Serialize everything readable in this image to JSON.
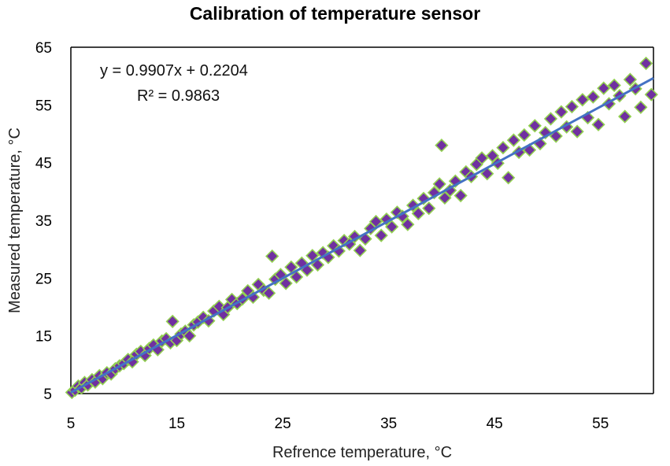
{
  "chart_data": {
    "type": "scatter",
    "title": "Calibration of temperature sensor",
    "xlabel": "Refrence temperature, °C",
    "ylabel": "Measured temperature, °C",
    "xlim": [
      5,
      60
    ],
    "ylim": [
      5,
      65
    ],
    "x_ticks": [
      "5",
      "15",
      "25",
      "35",
      "45",
      "55"
    ],
    "y_ticks": [
      "5",
      "15",
      "25",
      "35",
      "45",
      "55",
      "65"
    ],
    "grid": false,
    "marker_color": "#7030a0",
    "marker_edge_color": "#92d050",
    "trendline_color": "#4472c4",
    "trendline": {
      "equation": "y = 0.9907x + 0.2204",
      "r_squared": "R² = 0.9863",
      "slope": 0.9907,
      "intercept": 0.2204
    },
    "x": [
      5.1,
      5.4,
      5.7,
      6.0,
      6.3,
      6.6,
      7.0,
      7.3,
      7.7,
      8.0,
      8.4,
      8.8,
      9.2,
      9.6,
      10.0,
      10.4,
      10.8,
      11.2,
      11.6,
      12.0,
      12.4,
      12.8,
      13.2,
      13.6,
      14.0,
      14.4,
      14.6,
      15.0,
      15.4,
      15.8,
      16.2,
      16.6,
      17.0,
      17.5,
      18.0,
      18.5,
      19.0,
      19.4,
      19.8,
      20.2,
      20.7,
      21.2,
      21.7,
      22.2,
      22.7,
      23.2,
      23.7,
      24.0,
      24.3,
      24.8,
      25.3,
      25.8,
      26.3,
      26.8,
      27.3,
      27.8,
      28.3,
      28.8,
      29.3,
      29.8,
      30.3,
      30.8,
      31.3,
      31.8,
      32.3,
      32.8,
      33.3,
      33.8,
      34.3,
      34.8,
      35.3,
      35.8,
      36.3,
      36.8,
      37.3,
      37.8,
      38.3,
      38.8,
      39.3,
      39.8,
      40.0,
      40.3,
      40.8,
      41.3,
      41.8,
      42.3,
      42.8,
      43.3,
      43.8,
      44.3,
      44.8,
      45.3,
      45.8,
      46.3,
      46.8,
      47.3,
      47.8,
      48.3,
      48.8,
      49.3,
      49.8,
      50.3,
      50.8,
      51.3,
      51.8,
      52.3,
      52.8,
      53.3,
      53.8,
      54.3,
      54.8,
      55.3,
      55.8,
      56.3,
      56.8,
      57.3,
      57.8,
      58.3,
      58.8,
      59.3,
      59.8
    ],
    "y": [
      5.2,
      5.6,
      6.3,
      6.0,
      6.9,
      6.5,
      7.4,
      7.0,
      8.1,
      7.6,
      8.6,
      8.4,
      9.3,
      9.8,
      10.2,
      10.9,
      10.5,
      11.8,
      12.3,
      11.6,
      12.8,
      13.4,
      12.6,
      14.1,
      14.5,
      13.8,
      17.5,
      14.2,
      15.3,
      15.8,
      15.0,
      16.9,
      17.4,
      18.2,
      17.6,
      19.3,
      20.1,
      18.7,
      19.9,
      21.3,
      20.6,
      21.4,
      22.8,
      21.7,
      23.9,
      22.9,
      22.4,
      28.8,
      24.8,
      25.6,
      24.1,
      26.9,
      25.2,
      27.6,
      26.4,
      28.9,
      27.3,
      29.4,
      28.6,
      30.6,
      29.7,
      31.5,
      30.9,
      32.2,
      29.8,
      31.8,
      33.6,
      34.8,
      32.4,
      35.2,
      33.9,
      36.4,
      35.7,
      34.3,
      37.6,
      36.2,
      38.8,
      37.1,
      39.8,
      41.3,
      48.0,
      38.9,
      40.2,
      41.8,
      39.3,
      43.4,
      42.6,
      44.7,
      45.8,
      43.1,
      46.2,
      44.9,
      47.6,
      42.4,
      48.9,
      46.8,
      49.8,
      47.2,
      51.4,
      48.3,
      50.2,
      52.6,
      49.6,
      53.8,
      51.2,
      54.7,
      50.4,
      55.9,
      52.8,
      56.4,
      51.6,
      57.9,
      55.2,
      58.4,
      56.6,
      53.0,
      59.4,
      57.8,
      54.6,
      62.2,
      56.8
    ]
  }
}
